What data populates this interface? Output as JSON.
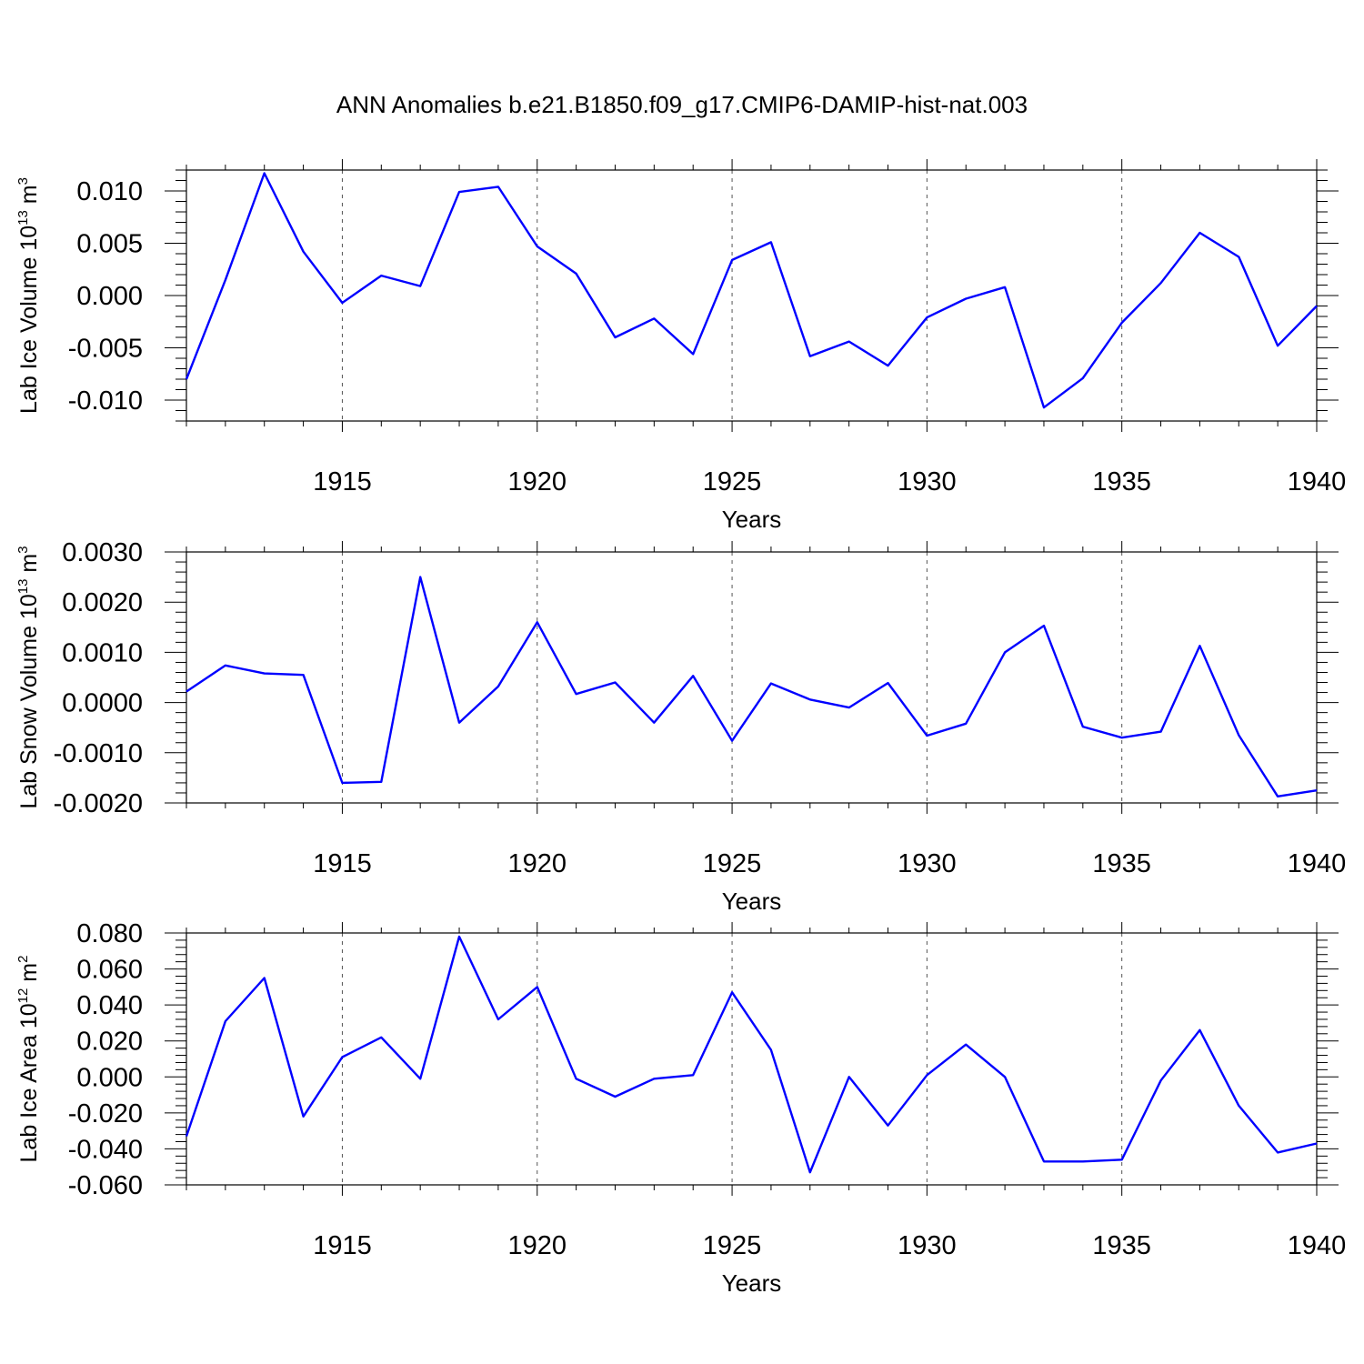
{
  "title": "ANN Anomalies b.e21.B1850.f09_g17.CMIP6-DAMIP-hist-nat.003",
  "colors": {
    "line": "#0000ff",
    "axis": "#000000",
    "grid": "#555555"
  },
  "chart_data": [
    {
      "type": "line",
      "xlabel": "Years",
      "ylabel": {
        "main": "Lab Ice Volume 10",
        "exp": "13",
        "tail": " m",
        "unit_exp": "3"
      },
      "xlim": [
        1911,
        1940
      ],
      "ylim": [
        -0.012,
        0.012
      ],
      "yticks": [
        -0.01,
        -0.005,
        0.0,
        0.005,
        0.01
      ],
      "ytick_labels": [
        "-0.010",
        "-0.005",
        "0.000",
        "0.005",
        "0.010"
      ],
      "xticks": [
        1915,
        1920,
        1925,
        1930,
        1935,
        1940
      ],
      "xtick_labels": [
        "1915",
        "1920",
        "1925",
        "1930",
        "1935",
        "1940"
      ],
      "grid": "vertical dashed at major x ticks",
      "series": [
        {
          "x": [
            1911,
            1912,
            1913,
            1914,
            1915,
            1916,
            1917,
            1918,
            1919,
            1920,
            1921,
            1922,
            1923,
            1924,
            1925,
            1926,
            1927,
            1928,
            1929,
            1930,
            1931,
            1932,
            1933,
            1934,
            1935,
            1936,
            1937,
            1938,
            1939,
            1940
          ],
          "values": [
            -0.008,
            0.0015,
            0.0117,
            0.0042,
            -0.0007,
            0.0019,
            0.0009,
            0.0099,
            0.0104,
            0.0047,
            0.0021,
            -0.004,
            -0.0022,
            -0.0056,
            0.0034,
            0.0051,
            -0.0058,
            -0.0044,
            -0.0067,
            -0.0021,
            -0.0003,
            0.0008,
            -0.0107,
            -0.0079,
            -0.0026,
            0.0012,
            0.006,
            0.0037,
            -0.0048,
            -0.001
          ]
        }
      ]
    },
    {
      "type": "line",
      "xlabel": "Years",
      "ylabel": {
        "main": "Lab Snow Volume 10",
        "exp": "13",
        "tail": " m",
        "unit_exp": "3"
      },
      "xlim": [
        1911,
        1940
      ],
      "ylim": [
        -0.002,
        0.003
      ],
      "yticks": [
        -0.002,
        -0.001,
        0.0,
        0.001,
        0.002,
        0.003
      ],
      "ytick_labels": [
        "-0.0020",
        "-0.0010",
        "0.0000",
        "0.0010",
        "0.0020",
        "0.0030"
      ],
      "xticks": [
        1915,
        1920,
        1925,
        1930,
        1935,
        1940
      ],
      "xtick_labels": [
        "1915",
        "1920",
        "1925",
        "1930",
        "1935",
        "1940"
      ],
      "grid": "vertical dashed at major x ticks",
      "series": [
        {
          "x": [
            1911,
            1912,
            1913,
            1914,
            1915,
            1916,
            1917,
            1918,
            1919,
            1920,
            1921,
            1922,
            1923,
            1924,
            1925,
            1926,
            1927,
            1928,
            1929,
            1930,
            1931,
            1932,
            1933,
            1934,
            1935,
            1936,
            1937,
            1938,
            1939,
            1940
          ],
          "values": [
            0.00022,
            0.00074,
            0.00058,
            0.00055,
            -0.0016,
            -0.00158,
            0.0025,
            -0.0004,
            0.00032,
            0.0016,
            0.00017,
            0.0004,
            -0.0004,
            0.00053,
            -0.00076,
            0.00038,
            6e-05,
            -0.0001,
            0.00039,
            -0.00066,
            -0.00042,
            0.001,
            0.00153,
            -0.00048,
            -0.0007,
            -0.00058,
            0.00113,
            -0.00065,
            -0.00187,
            -0.00175
          ]
        }
      ]
    },
    {
      "type": "line",
      "xlabel": "Years",
      "ylabel": {
        "main": "Lab Ice Area 10",
        "exp": "12",
        "tail": " m",
        "unit_exp": "2"
      },
      "xlim": [
        1911,
        1940
      ],
      "ylim": [
        -0.06,
        0.08
      ],
      "yticks": [
        -0.06,
        -0.04,
        -0.02,
        0.0,
        0.02,
        0.04,
        0.06,
        0.08
      ],
      "ytick_labels": [
        "-0.060",
        "-0.040",
        "-0.020",
        "0.000",
        "0.020",
        "0.040",
        "0.060",
        "0.080"
      ],
      "xticks": [
        1915,
        1920,
        1925,
        1930,
        1935,
        1940
      ],
      "xtick_labels": [
        "1915",
        "1920",
        "1925",
        "1930",
        "1935",
        "1940"
      ],
      "grid": "vertical dashed at major x ticks",
      "series": [
        {
          "x": [
            1911,
            1912,
            1913,
            1914,
            1915,
            1916,
            1917,
            1918,
            1919,
            1920,
            1921,
            1922,
            1923,
            1924,
            1925,
            1926,
            1927,
            1928,
            1929,
            1930,
            1931,
            1932,
            1933,
            1934,
            1935,
            1936,
            1937,
            1938,
            1939,
            1940
          ],
          "values": [
            -0.033,
            0.031,
            0.055,
            -0.022,
            0.011,
            0.022,
            -0.001,
            0.078,
            0.032,
            0.05,
            -0.001,
            -0.011,
            -0.001,
            0.001,
            0.047,
            0.015,
            -0.053,
            0.0,
            -0.027,
            0.001,
            0.018,
            0.0,
            -0.047,
            -0.047,
            -0.046,
            -0.002,
            0.026,
            -0.016,
            -0.042,
            -0.037
          ]
        }
      ]
    }
  ]
}
